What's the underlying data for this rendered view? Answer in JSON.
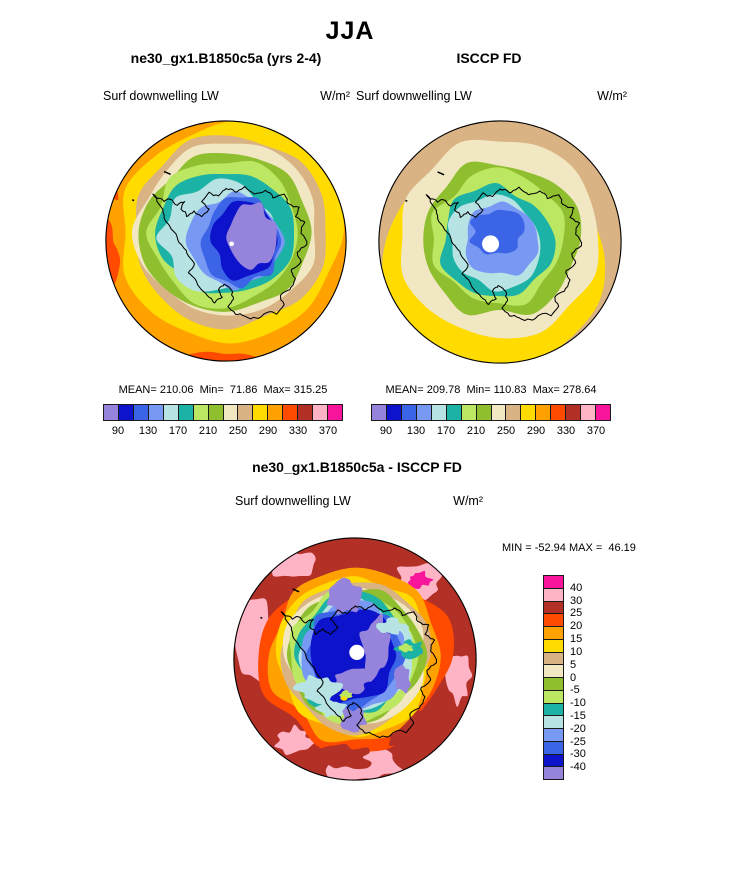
{
  "title": "JJA",
  "palette": [
    "#9683DC",
    "#0D12CB",
    "#3C64E6",
    "#7899F3",
    "#B7E3E4",
    "#1CB2A5",
    "#BCE763",
    "#8FBE2E",
    "#F1E7C2",
    "#D9B383",
    "#FFDB00",
    "#FFA200",
    "#FF4A00",
    "#B33026",
    "#FFB4C6",
    "#F8159B"
  ],
  "panels": {
    "model": {
      "header": "ne30_gx1.B1850c5a (yrs 2-4)",
      "var_label": "Surf downwelling LW",
      "units": "W/m²",
      "stats": "MEAN= 210.06  Min=  71.86  Max= 315.25",
      "colorbar_labels": [
        "90",
        "130",
        "170",
        "210",
        "250",
        "290",
        "330",
        "370"
      ]
    },
    "obs": {
      "header": "ISCCP FD",
      "var_label": "Surf downwelling LW",
      "units": "W/m²",
      "stats": "MEAN= 209.78  Min= 110.83  Max= 278.64",
      "colorbar_labels": [
        "90",
        "130",
        "170",
        "210",
        "250",
        "290",
        "330",
        "370"
      ]
    },
    "diff": {
      "header": "ne30_gx1.B1850c5a - ISCCP FD",
      "var_label": "Surf downwelling LW",
      "units": "W/m²",
      "minmax": "MIN = -52.94 MAX =  46.19",
      "colorbar_labels": [
        "40",
        "30",
        "25",
        "20",
        "15",
        "10",
        "5",
        "0",
        "-5",
        "-10",
        "-15",
        "-20",
        "-25",
        "-30",
        "-40"
      ]
    }
  },
  "chart_data": [
    {
      "type": "heatmap",
      "subtype": "filled-contour south polar stereographic map",
      "title": "ne30_gx1.B1850c5a (yrs 2-4)",
      "season": "JJA",
      "variable": "Surf downwelling LW",
      "units": "W/m^2",
      "region": "Antarctica / Southern Ocean, pole-centered circular map",
      "stats": {
        "mean": 210.06,
        "min": 71.86,
        "max": 315.25
      },
      "contour_levels": [
        90,
        110,
        130,
        150,
        170,
        190,
        210,
        230,
        250,
        270,
        290,
        310,
        330,
        350,
        370
      ],
      "colorbar_tick_labels": [
        90,
        130,
        170,
        210,
        250,
        290,
        330,
        370
      ],
      "legend_position": "bottom horizontal labelbar, 16 boxes",
      "pattern": "low values (blue/purple, ~70-150 W/m^2) over interior East Antarctica increasing outward through cyan/teal/green/cream/tan rings to yellow-orange (~250-330 W/m^2) over surrounding ocean"
    },
    {
      "type": "heatmap",
      "subtype": "filled-contour south polar stereographic map",
      "title": "ISCCP FD",
      "season": "JJA",
      "variable": "Surf downwelling LW",
      "units": "W/m^2",
      "region": "Antarctica / Southern Ocean, pole-centered circular map",
      "stats": {
        "mean": 209.78,
        "min": 110.83,
        "max": 278.64
      },
      "contour_levels": [
        90,
        110,
        130,
        150,
        170,
        190,
        210,
        230,
        250,
        270,
        290,
        310,
        330,
        350,
        370
      ],
      "colorbar_tick_labels": [
        90,
        130,
        170,
        210,
        250,
        290,
        330,
        370
      ],
      "legend_position": "bottom horizontal labelbar, 16 boxes",
      "pattern": "blue interior (~110-150 W/m^2) with white data-void circle at the pole, rings of cyan/teal/green over coast, cream/tan over ocean, yellow near map edge"
    },
    {
      "type": "heatmap",
      "subtype": "filled-contour difference map (model minus observations)",
      "title": "ne30_gx1.B1850c5a - ISCCP FD",
      "season": "JJA",
      "variable": "Surf downwelling LW",
      "units": "W/m^2",
      "stats": {
        "min": -52.94,
        "max": 46.19
      },
      "contour_levels": [
        -40,
        -30,
        -25,
        -20,
        -15,
        -10,
        -5,
        0,
        5,
        10,
        15,
        20,
        25,
        30,
        40
      ],
      "colorbar_tick_labels": [
        40,
        30,
        25,
        20,
        15,
        10,
        5,
        0,
        -5,
        -10,
        -15,
        -20,
        -25,
        -30,
        -40
      ],
      "legend_position": "right vertical labelbar, 16 boxes",
      "pattern": "strong positive bias (+20 to +40, red/pink/magenta) over surrounding ocean ring; strong negative bias (-20 to -45, blue/purple) over the Antarctic continent interior"
    }
  ]
}
